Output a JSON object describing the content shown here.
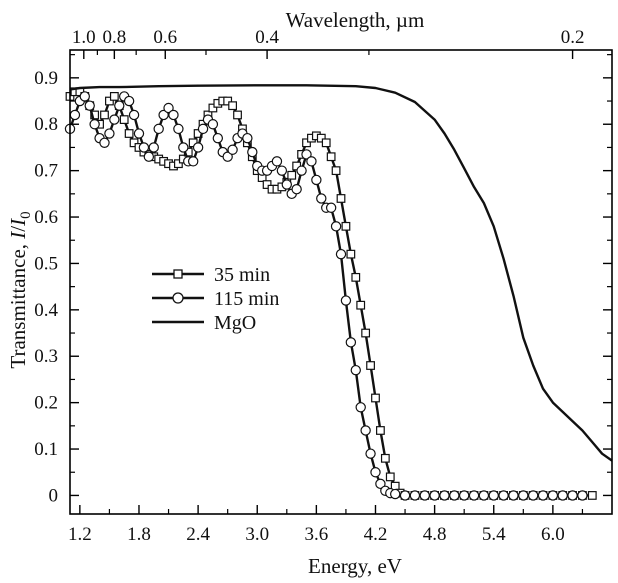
{
  "chart_data": {
    "type": "line",
    "xlabel": "Energy, eV",
    "ylabel_main": "Transmittance, ",
    "ylabel_var": "I",
    "ylabel_slash": "/",
    "ylabel_var2": "I",
    "ylabel_sub": "0",
    "top_xlabel": "Wavelength, µm",
    "xlim": [
      1.1,
      6.6
    ],
    "ylim": [
      -0.04,
      0.96
    ],
    "x_ticks": [
      1.2,
      1.8,
      2.4,
      3.0,
      3.6,
      4.2,
      4.8,
      5.4,
      6.0
    ],
    "x_tick_labels": [
      "1.2",
      "1.8",
      "2.4",
      "3.0",
      "3.6",
      "4.2",
      "4.8",
      "5.4",
      "6.0"
    ],
    "y_ticks": [
      0,
      0.1,
      0.2,
      0.3,
      0.4,
      0.5,
      0.6,
      0.7,
      0.8,
      0.9
    ],
    "y_tick_labels": [
      "0",
      "0.1",
      "0.2",
      "0.3",
      "0.4",
      "0.5",
      "0.6",
      "0.7",
      "0.8",
      "0.9"
    ],
    "top_ticks_um": [
      1.0,
      0.8,
      0.6,
      0.4,
      0.2
    ],
    "top_tick_labels": [
      "1.0",
      "0.8",
      "0.6",
      "0.4",
      "0.2"
    ],
    "legend_position": "middle-left",
    "series": [
      {
        "name": "35 min",
        "marker": "square",
        "x": [
          1.1,
          1.15,
          1.2,
          1.25,
          1.3,
          1.35,
          1.4,
          1.45,
          1.5,
          1.55,
          1.6,
          1.65,
          1.7,
          1.75,
          1.8,
          1.85,
          1.9,
          1.95,
          2.0,
          2.05,
          2.1,
          2.15,
          2.2,
          2.25,
          2.3,
          2.35,
          2.4,
          2.45,
          2.5,
          2.55,
          2.6,
          2.65,
          2.7,
          2.75,
          2.8,
          2.85,
          2.9,
          2.95,
          3.0,
          3.05,
          3.1,
          3.15,
          3.2,
          3.25,
          3.3,
          3.35,
          3.4,
          3.45,
          3.5,
          3.55,
          3.6,
          3.65,
          3.7,
          3.75,
          3.8,
          3.85,
          3.9,
          3.95,
          4.0,
          4.05,
          4.1,
          4.15,
          4.2,
          4.25,
          4.3,
          4.35,
          4.4,
          4.45,
          4.5,
          4.6,
          4.7,
          4.8,
          4.9,
          5.0,
          5.1,
          5.2,
          5.3,
          5.4,
          5.5,
          5.6,
          5.7,
          5.8,
          5.9,
          6.0,
          6.1,
          6.2,
          6.3,
          6.4
        ],
        "y": [
          0.86,
          0.87,
          0.87,
          0.86,
          0.84,
          0.82,
          0.8,
          0.82,
          0.85,
          0.86,
          0.84,
          0.81,
          0.78,
          0.76,
          0.75,
          0.74,
          0.735,
          0.73,
          0.725,
          0.72,
          0.715,
          0.71,
          0.715,
          0.725,
          0.74,
          0.76,
          0.78,
          0.8,
          0.82,
          0.835,
          0.845,
          0.85,
          0.85,
          0.84,
          0.82,
          0.79,
          0.76,
          0.73,
          0.7,
          0.685,
          0.67,
          0.66,
          0.66,
          0.665,
          0.675,
          0.69,
          0.71,
          0.735,
          0.76,
          0.77,
          0.775,
          0.77,
          0.76,
          0.73,
          0.7,
          0.64,
          0.58,
          0.52,
          0.47,
          0.41,
          0.35,
          0.28,
          0.21,
          0.14,
          0.08,
          0.04,
          0.02,
          0.005,
          0.0,
          0.0,
          0.0,
          0.0,
          0.0,
          0.0,
          0.0,
          0.0,
          0.0,
          0.0,
          0.0,
          0.0,
          0.0,
          0.0,
          0.0,
          0.0,
          0.0,
          0.0,
          0.0,
          0.0
        ]
      },
      {
        "name": "115 min",
        "marker": "circle",
        "x": [
          1.1,
          1.15,
          1.2,
          1.25,
          1.3,
          1.35,
          1.4,
          1.45,
          1.5,
          1.55,
          1.6,
          1.65,
          1.7,
          1.75,
          1.8,
          1.85,
          1.9,
          1.95,
          2.0,
          2.05,
          2.1,
          2.15,
          2.2,
          2.25,
          2.3,
          2.35,
          2.4,
          2.45,
          2.5,
          2.55,
          2.6,
          2.65,
          2.7,
          2.75,
          2.8,
          2.85,
          2.9,
          2.95,
          3.0,
          3.05,
          3.1,
          3.15,
          3.2,
          3.25,
          3.3,
          3.35,
          3.4,
          3.45,
          3.5,
          3.55,
          3.6,
          3.65,
          3.7,
          3.75,
          3.8,
          3.85,
          3.9,
          3.95,
          4.0,
          4.05,
          4.1,
          4.15,
          4.2,
          4.25,
          4.3,
          4.35,
          4.4,
          4.5,
          4.6,
          4.7,
          4.8,
          4.9,
          5.0,
          5.1,
          5.2,
          5.3,
          5.4,
          5.5,
          5.6,
          5.7,
          5.8,
          5.9,
          6.0,
          6.1,
          6.2,
          6.3
        ],
        "y": [
          0.79,
          0.82,
          0.85,
          0.86,
          0.84,
          0.8,
          0.77,
          0.76,
          0.78,
          0.81,
          0.84,
          0.86,
          0.85,
          0.82,
          0.78,
          0.75,
          0.73,
          0.75,
          0.79,
          0.82,
          0.835,
          0.82,
          0.79,
          0.75,
          0.72,
          0.72,
          0.75,
          0.79,
          0.81,
          0.8,
          0.77,
          0.74,
          0.73,
          0.745,
          0.77,
          0.78,
          0.77,
          0.74,
          0.71,
          0.7,
          0.7,
          0.71,
          0.72,
          0.7,
          0.67,
          0.65,
          0.66,
          0.7,
          0.735,
          0.72,
          0.68,
          0.64,
          0.62,
          0.62,
          0.58,
          0.52,
          0.42,
          0.33,
          0.27,
          0.19,
          0.14,
          0.09,
          0.05,
          0.025,
          0.01,
          0.005,
          0.003,
          0.0,
          0.0,
          0.0,
          0.0,
          0.0,
          0.0,
          0.0,
          0.0,
          0.0,
          0.0,
          0.0,
          0.0,
          0.0,
          0.0,
          0.0,
          0.0,
          0.0,
          0.0,
          0.0
        ]
      },
      {
        "name": "MgO",
        "marker": "none",
        "x": [
          1.1,
          1.2,
          1.4,
          1.6,
          2.0,
          2.4,
          3.0,
          3.5,
          4.0,
          4.2,
          4.4,
          4.6,
          4.8,
          4.9,
          5.0,
          5.1,
          5.2,
          5.3,
          5.4,
          5.5,
          5.6,
          5.7,
          5.8,
          5.9,
          6.0,
          6.1,
          6.2,
          6.3,
          6.4,
          6.5,
          6.6
        ],
        "y": [
          0.875,
          0.878,
          0.88,
          0.88,
          0.882,
          0.883,
          0.884,
          0.884,
          0.882,
          0.878,
          0.868,
          0.848,
          0.81,
          0.78,
          0.745,
          0.705,
          0.665,
          0.63,
          0.58,
          0.51,
          0.43,
          0.34,
          0.28,
          0.23,
          0.2,
          0.18,
          0.16,
          0.14,
          0.115,
          0.09,
          0.075
        ]
      }
    ]
  }
}
